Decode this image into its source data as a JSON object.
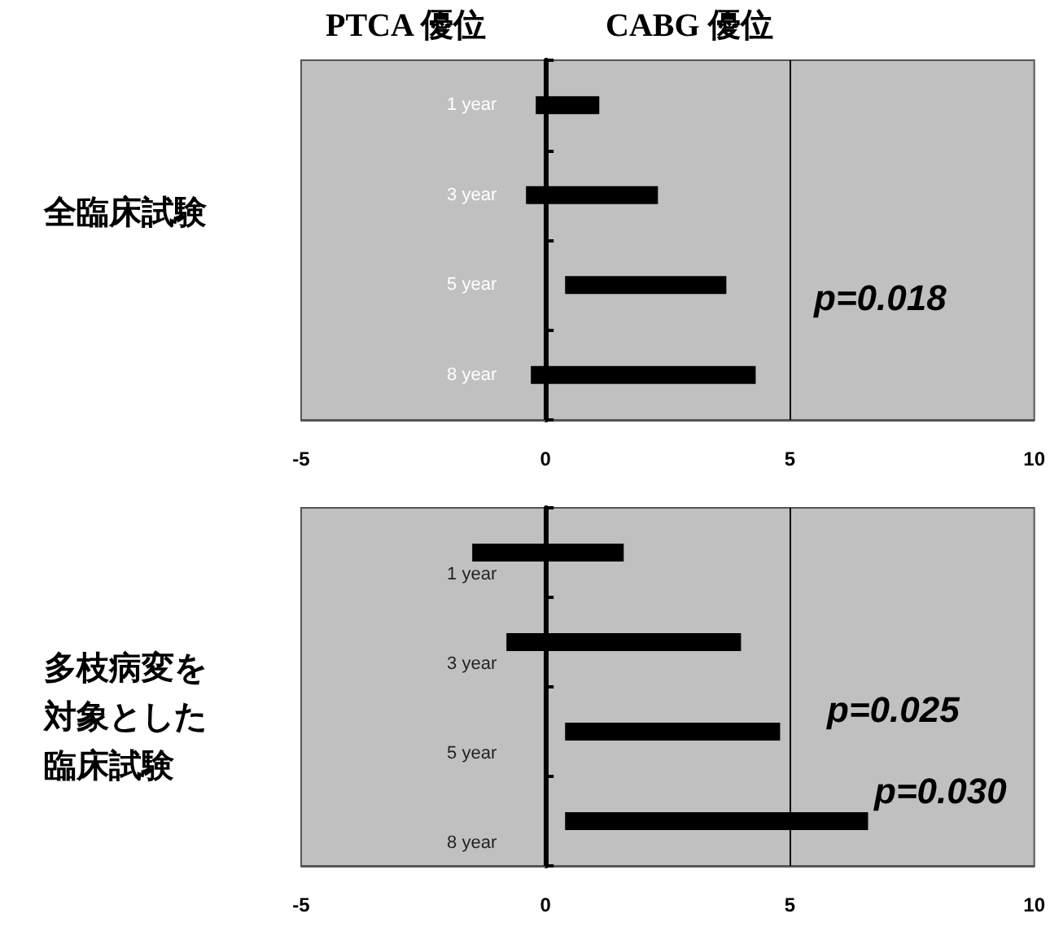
{
  "chart_data": [
    {
      "type": "bar",
      "orientation": "horizontal",
      "title": "全臨床試験",
      "categories": [
        "1 year",
        "3 year",
        "5 year",
        "8 year"
      ],
      "base": [
        -0.2,
        -0.4,
        0.4,
        -0.3
      ],
      "values": [
        1.3,
        2.7,
        3.3,
        4.6
      ],
      "color": "#000000",
      "xlim": [
        -5,
        10
      ],
      "xticks": [
        -5,
        0,
        5,
        10
      ],
      "ref_lines": [
        {
          "axis": "x",
          "value": 5,
          "color": "#000000"
        }
      ],
      "annotations": [
        "PTCA 優位",
        "CABG 優位",
        "p=0.018"
      ],
      "grid": false
    },
    {
      "type": "bar",
      "orientation": "horizontal",
      "title": "多枝病変を対象とした臨床試験",
      "categories": [
        "1 year",
        "3 year",
        "5 year",
        "8 year"
      ],
      "base": [
        -1.5,
        -0.8,
        0.4,
        0.4
      ],
      "values": [
        3.1,
        4.8,
        4.4,
        6.2
      ],
      "color": "#000000",
      "xlim": [
        -5,
        10
      ],
      "xticks": [
        -5,
        0,
        5,
        10
      ],
      "ref_lines": [
        {
          "axis": "x",
          "value": 5,
          "color": "#000000"
        }
      ],
      "annotations": [
        "p=0.025",
        "p=0.030"
      ],
      "grid": false
    }
  ]
}
